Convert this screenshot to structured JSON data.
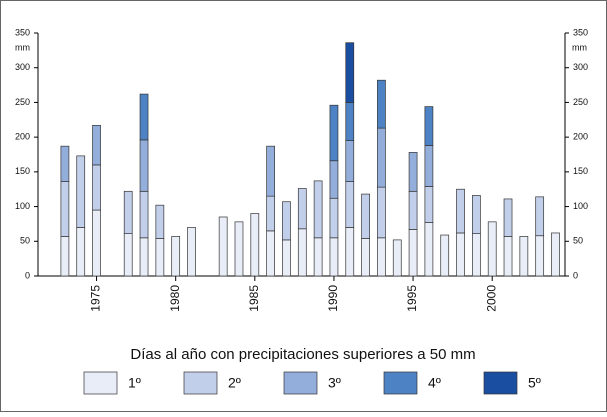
{
  "chart_data": {
    "type": "stacked-bar",
    "y_unit": "mm",
    "legend_title": "Días al año con precipitaciones superiores a 50 mm",
    "x": [
      1973,
      1974,
      1975,
      1977,
      1978,
      1979,
      1980,
      1981,
      1983,
      1984,
      1985,
      1986,
      1987,
      1988,
      1989,
      1990,
      1991,
      1992,
      1993,
      1994,
      1995,
      1996,
      1997,
      1998,
      1999,
      2000,
      2001,
      2002,
      2003,
      2004
    ],
    "xlim": [
      1971.3,
      2004.6
    ],
    "xticks": [
      1975,
      1980,
      1985,
      1990,
      1995,
      2000
    ],
    "ylim": [
      0,
      350
    ],
    "yticks": [
      0,
      50,
      100,
      150,
      200,
      250,
      300,
      350
    ],
    "series": [
      {
        "name": "1º",
        "color": "#e8edf7",
        "values": [
          57,
          70,
          95,
          61,
          55,
          54,
          57,
          70,
          85,
          78,
          90,
          65,
          52,
          68,
          55,
          55,
          70,
          54,
          55,
          52,
          67,
          77,
          59,
          62,
          61,
          78,
          57,
          57,
          58,
          62
        ]
      },
      {
        "name": "2º",
        "color": "#c2cfea",
        "values": [
          79,
          103,
          65,
          61,
          67,
          48,
          null,
          null,
          null,
          null,
          null,
          50,
          55,
          58,
          82,
          57,
          66,
          64,
          73,
          null,
          55,
          52,
          null,
          63,
          55,
          null,
          54,
          null,
          56,
          null
        ]
      },
      {
        "name": "3º",
        "color": "#94aedb",
        "values": [
          51,
          null,
          57,
          null,
          74,
          null,
          null,
          null,
          null,
          null,
          null,
          72,
          null,
          null,
          null,
          54,
          59,
          null,
          85,
          null,
          56,
          59,
          null,
          null,
          null,
          null,
          null,
          null,
          null,
          null
        ]
      },
      {
        "name": "4º",
        "color": "#4d82c4",
        "values": [
          null,
          null,
          null,
          null,
          66,
          null,
          null,
          null,
          null,
          null,
          null,
          null,
          null,
          null,
          null,
          80,
          55,
          null,
          69,
          null,
          null,
          56,
          null,
          null,
          null,
          null,
          null,
          null,
          null,
          null
        ]
      },
      {
        "name": "5º",
        "color": "#1a4ea0",
        "values": [
          null,
          null,
          null,
          null,
          null,
          null,
          null,
          null,
          null,
          null,
          null,
          null,
          null,
          null,
          null,
          null,
          86,
          null,
          null,
          null,
          null,
          null,
          null,
          null,
          null,
          null,
          null,
          null,
          null,
          null
        ]
      }
    ]
  }
}
